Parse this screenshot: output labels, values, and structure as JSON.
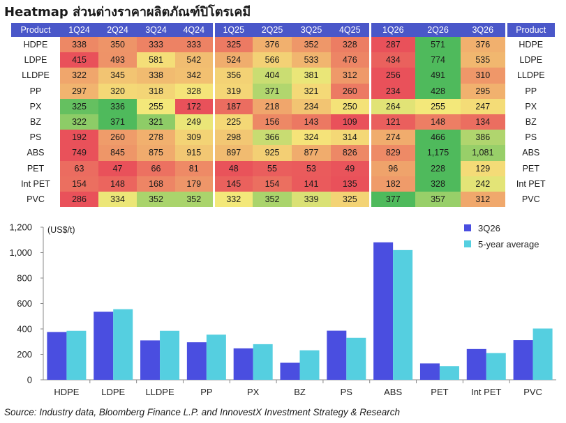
{
  "title": "Heatmap ส่วนต่างราคาผลิตภัณฑ์ปิโตรเคมี",
  "source": "Source: Industry data, Bloomberg Finance L.P. and InnovestX Investment Strategy & Research",
  "colors": {
    "header_bg": "#4a57c9",
    "series_3q26": "#4a4ee0",
    "series_5yr": "#55cfe0",
    "heat_low": "#e9515a",
    "heat_mid": "#f5e97a",
    "heat_high": "#4fba5c"
  },
  "heatmap": {
    "product_header": "Product",
    "quarters": [
      "1Q24",
      "2Q24",
      "3Q24",
      "4Q24",
      "1Q25",
      "2Q25",
      "3Q25",
      "4Q25",
      "1Q26",
      "2Q26",
      "3Q26"
    ],
    "rows": [
      {
        "product": "HDPE",
        "values": [
          "338",
          "350",
          "333",
          "333",
          "325",
          "376",
          "352",
          "328",
          "287",
          "571",
          "376"
        ]
      },
      {
        "product": "LDPE",
        "values": [
          "415",
          "493",
          "581",
          "542",
          "524",
          "566",
          "533",
          "476",
          "434",
          "774",
          "535"
        ]
      },
      {
        "product": "LLDPE",
        "values": [
          "322",
          "345",
          "338",
          "342",
          "356",
          "404",
          "381",
          "312",
          "256",
          "491",
          "310"
        ]
      },
      {
        "product": "PP",
        "values": [
          "297",
          "320",
          "318",
          "328",
          "319",
          "371",
          "321",
          "260",
          "234",
          "428",
          "295"
        ]
      },
      {
        "product": "PX",
        "values": [
          "325",
          "336",
          "255",
          "172",
          "187",
          "218",
          "234",
          "250",
          "264",
          "255",
          "247"
        ]
      },
      {
        "product": "BZ",
        "values": [
          "322",
          "371",
          "321",
          "249",
          "225",
          "156",
          "143",
          "109",
          "121",
          "148",
          "134"
        ]
      },
      {
        "product": "PS",
        "values": [
          "192",
          "260",
          "278",
          "309",
          "298",
          "366",
          "324",
          "314",
          "274",
          "466",
          "386"
        ]
      },
      {
        "product": "ABS",
        "values": [
          "749",
          "845",
          "875",
          "915",
          "897",
          "925",
          "877",
          "826",
          "829",
          "1,175",
          "1,081"
        ]
      },
      {
        "product": "PET",
        "values": [
          "63",
          "47",
          "66",
          "81",
          "48",
          "55",
          "53",
          "49",
          "96",
          "228",
          "129"
        ]
      },
      {
        "product": "Int PET",
        "values": [
          "154",
          "148",
          "168",
          "179",
          "145",
          "154",
          "141",
          "135",
          "182",
          "328",
          "242"
        ]
      },
      {
        "product": "PVC",
        "values": [
          "286",
          "334",
          "352",
          "352",
          "332",
          "352",
          "339",
          "325",
          "377",
          "357",
          "312"
        ]
      }
    ]
  },
  "chart_data": {
    "type": "bar",
    "categories": [
      "HDPE",
      "LDPE",
      "LLDPE",
      "PP",
      "PX",
      "BZ",
      "PS",
      "ABS",
      "PET",
      "Int PET",
      "PVC"
    ],
    "series": [
      {
        "name": "3Q26",
        "values": [
          376,
          535,
          310,
          295,
          247,
          134,
          386,
          1081,
          129,
          242,
          312
        ]
      },
      {
        "name": "5-year average",
        "values": [
          385,
          555,
          385,
          355,
          280,
          232,
          330,
          1020,
          108,
          210,
          403
        ]
      }
    ],
    "ylabel": "(US$/t)",
    "ylim": [
      0,
      1200
    ],
    "yticks": [
      "0",
      "200",
      "400",
      "600",
      "800",
      "1,000",
      "1,200"
    ],
    "ytick_values": [
      0,
      200,
      400,
      600,
      800,
      1000,
      1200
    ],
    "legend_position": "top-right",
    "grid": false
  }
}
